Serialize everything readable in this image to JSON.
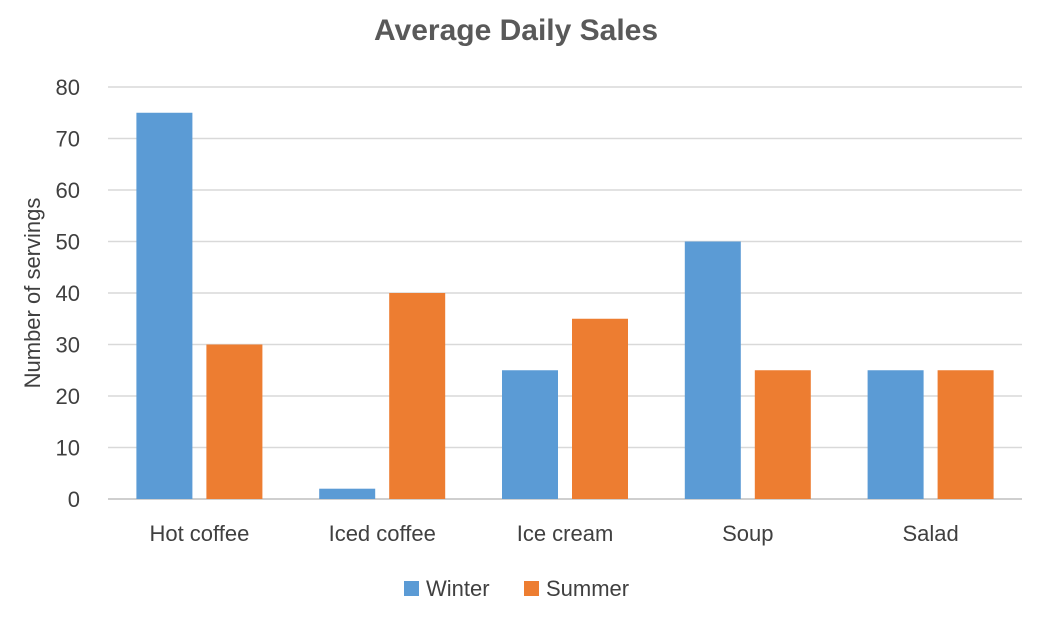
{
  "chart_data": {
    "type": "bar",
    "title": "Average Daily Sales",
    "xlabel": "",
    "ylabel": "Number of servings",
    "ylim": [
      0,
      80
    ],
    "yticks": [
      0,
      10,
      20,
      30,
      40,
      50,
      60,
      70,
      80
    ],
    "grid": true,
    "legend_position": "bottom",
    "categories": [
      "Hot coffee",
      "Iced coffee",
      "Ice cream",
      "Soup",
      "Salad"
    ],
    "series": [
      {
        "name": "Winter",
        "color": "#5b9bd5",
        "values": [
          75,
          2,
          25,
          50,
          25
        ]
      },
      {
        "name": "Summer",
        "color": "#ed7d31",
        "values": [
          30,
          40,
          35,
          25,
          25
        ]
      }
    ]
  }
}
